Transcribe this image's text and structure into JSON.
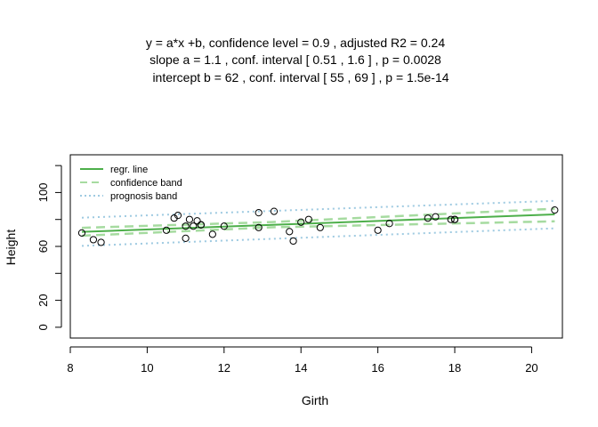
{
  "chart_data": {
    "type": "scatter",
    "title_lines": [
      "y = a*x +b, confidence level =  0.9 , adjusted R2 =  0.24",
      "slope a =  1.1 , conf. interval [ 0.51 , 1.6 ] , p =  0.0028",
      "intercept b =  62 , conf. interval [ 55 , 69 ] , p =  1.5e-14"
    ],
    "xlabel": "Girth",
    "ylabel": "Height",
    "xlim": [
      8,
      20.8
    ],
    "ylim": [
      -8,
      128
    ],
    "x_ticks": [
      8,
      10,
      12,
      14,
      16,
      18,
      20
    ],
    "y_ticks": [
      0,
      20,
      60,
      100
    ],
    "points": [
      {
        "x": 8.3,
        "y": 70
      },
      {
        "x": 8.6,
        "y": 65
      },
      {
        "x": 8.8,
        "y": 63
      },
      {
        "x": 10.5,
        "y": 72
      },
      {
        "x": 10.7,
        "y": 81
      },
      {
        "x": 10.8,
        "y": 83
      },
      {
        "x": 11.0,
        "y": 66
      },
      {
        "x": 11.0,
        "y": 75
      },
      {
        "x": 11.1,
        "y": 80
      },
      {
        "x": 11.2,
        "y": 75
      },
      {
        "x": 11.3,
        "y": 79
      },
      {
        "x": 11.4,
        "y": 76
      },
      {
        "x": 11.4,
        "y": 76
      },
      {
        "x": 11.7,
        "y": 69
      },
      {
        "x": 12.0,
        "y": 75
      },
      {
        "x": 12.9,
        "y": 74
      },
      {
        "x": 12.9,
        "y": 85
      },
      {
        "x": 13.3,
        "y": 86
      },
      {
        "x": 13.7,
        "y": 71
      },
      {
        "x": 13.8,
        "y": 64
      },
      {
        "x": 14.0,
        "y": 78
      },
      {
        "x": 14.2,
        "y": 80
      },
      {
        "x": 14.5,
        "y": 74
      },
      {
        "x": 16.0,
        "y": 72
      },
      {
        "x": 16.3,
        "y": 77
      },
      {
        "x": 17.3,
        "y": 81
      },
      {
        "x": 17.5,
        "y": 82
      },
      {
        "x": 17.9,
        "y": 80
      },
      {
        "x": 18.0,
        "y": 80
      },
      {
        "x": 18.0,
        "y": 80
      },
      {
        "x": 20.6,
        "y": 87
      }
    ],
    "regression": {
      "slope": 1.054,
      "intercept": 62.03,
      "x_range": [
        8.3,
        20.6
      ]
    },
    "confidence_band": {
      "lower": [
        [
          8.3,
          67.9
        ],
        [
          13.25,
          74.2
        ],
        [
          20.6,
          78.6
        ]
      ],
      "upper": [
        [
          8.3,
          73.8
        ],
        [
          13.25,
          78.1
        ],
        [
          20.6,
          88.0
        ]
      ]
    },
    "prognosis_band": {
      "lower": [
        [
          8.3,
          60.4
        ],
        [
          20.6,
          73.4
        ]
      ],
      "upper": [
        [
          8.3,
          81.3
        ],
        [
          20.6,
          93.8
        ]
      ]
    },
    "legend": {
      "position": "top-left",
      "entries": [
        {
          "label": "regr. line",
          "style": "solid",
          "color": "#4daf4a"
        },
        {
          "label": "confidence band",
          "style": "dashed",
          "color": "#a6dba0"
        },
        {
          "label": "prognosis band",
          "style": "dotted",
          "color": "#9ecae1"
        }
      ]
    },
    "colors": {
      "regression": "#4daf4a",
      "confidence": "#a6dba0",
      "prognosis": "#9ecae1",
      "points": "#000000"
    },
    "grid": false
  }
}
